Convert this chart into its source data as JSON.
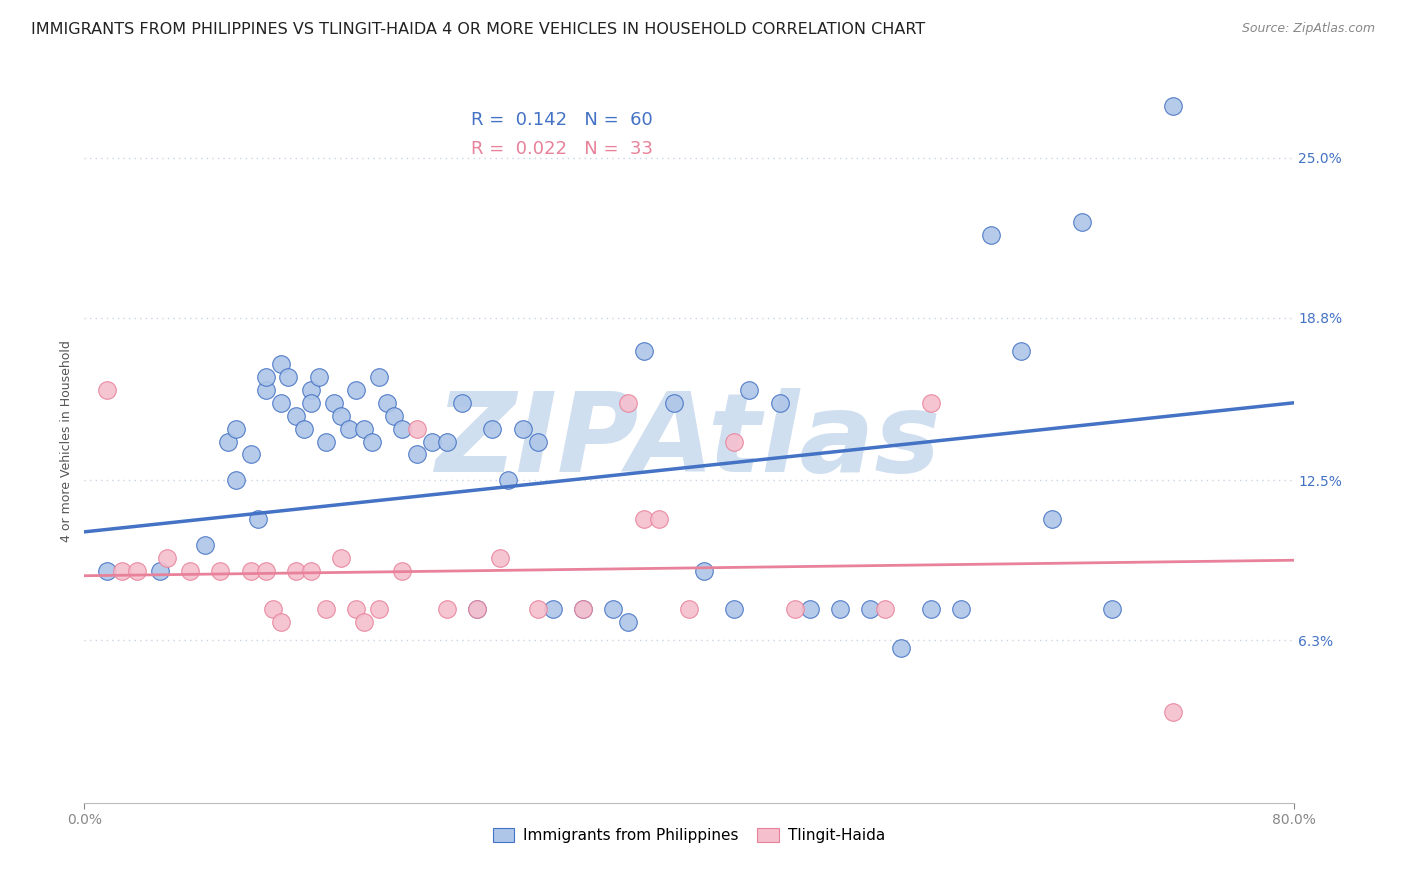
{
  "title": "IMMIGRANTS FROM PHILIPPINES VS TLINGIT-HAIDA 4 OR MORE VEHICLES IN HOUSEHOLD CORRELATION CHART",
  "source": "Source: ZipAtlas.com",
  "ylabel": "4 or more Vehicles in Household",
  "xlim": [
    0.0,
    80.0
  ],
  "ylim": [
    0.0,
    28.0
  ],
  "yticks": [
    6.3,
    12.5,
    18.8,
    25.0
  ],
  "ytick_labels": [
    "6.3%",
    "12.5%",
    "18.8%",
    "25.0%"
  ],
  "blue_label": "Immigrants from Philippines",
  "pink_label": "Tlingit-Haida",
  "blue_R": "0.142",
  "blue_N": "60",
  "pink_R": "0.022",
  "pink_N": "33",
  "blue_color": "#aec6e8",
  "pink_color": "#f5bfce",
  "blue_edge_color": "#4472c4",
  "pink_edge_color": "#e8829a",
  "blue_line_color": "#4472c4",
  "pink_line_color": "#e8829a",
  "watermark": "ZIPAtlas",
  "watermark_color": "#d0dff0",
  "blue_scatter_x": [
    1.5,
    5.0,
    8.0,
    9.5,
    10.0,
    10.0,
    11.0,
    11.5,
    12.0,
    12.0,
    13.0,
    13.0,
    13.5,
    14.0,
    14.5,
    15.0,
    15.0,
    15.5,
    16.0,
    16.5,
    17.0,
    17.5,
    18.0,
    18.5,
    19.0,
    19.5,
    20.0,
    20.5,
    21.0,
    22.0,
    23.0,
    24.0,
    25.0,
    26.0,
    27.0,
    28.0,
    29.0,
    30.0,
    31.0,
    33.0,
    35.0,
    36.0,
    37.0,
    39.0,
    41.0,
    43.0,
    44.0,
    46.0,
    48.0,
    50.0,
    52.0,
    54.0,
    56.0,
    58.0,
    60.0,
    62.0,
    64.0,
    66.0,
    68.0,
    72.0
  ],
  "blue_scatter_y": [
    9.0,
    9.0,
    10.0,
    14.0,
    12.5,
    14.5,
    13.5,
    11.0,
    16.0,
    16.5,
    15.5,
    17.0,
    16.5,
    15.0,
    14.5,
    16.0,
    15.5,
    16.5,
    14.0,
    15.5,
    15.0,
    14.5,
    16.0,
    14.5,
    14.0,
    16.5,
    15.5,
    15.0,
    14.5,
    13.5,
    14.0,
    14.0,
    15.5,
    7.5,
    14.5,
    12.5,
    14.5,
    14.0,
    7.5,
    7.5,
    7.5,
    7.0,
    17.5,
    15.5,
    9.0,
    7.5,
    16.0,
    15.5,
    7.5,
    7.5,
    7.5,
    6.0,
    7.5,
    7.5,
    22.0,
    17.5,
    11.0,
    22.5,
    7.5,
    27.0
  ],
  "pink_scatter_x": [
    1.5,
    2.5,
    3.5,
    5.5,
    7.0,
    9.0,
    11.0,
    12.0,
    12.5,
    13.0,
    14.0,
    15.0,
    16.0,
    17.0,
    18.0,
    18.5,
    19.5,
    21.0,
    22.0,
    24.0,
    26.0,
    27.5,
    30.0,
    33.0,
    36.0,
    37.0,
    38.0,
    40.0,
    43.0,
    47.0,
    53.0,
    56.0,
    72.0
  ],
  "pink_scatter_y": [
    16.0,
    9.0,
    9.0,
    9.5,
    9.0,
    9.0,
    9.0,
    9.0,
    7.5,
    7.0,
    9.0,
    9.0,
    7.5,
    9.5,
    7.5,
    7.0,
    7.5,
    9.0,
    14.5,
    7.5,
    7.5,
    9.5,
    7.5,
    7.5,
    15.5,
    11.0,
    11.0,
    7.5,
    14.0,
    7.5,
    7.5,
    15.5,
    3.5
  ],
  "blue_trend_x": [
    0.0,
    80.0
  ],
  "blue_trend_y": [
    10.5,
    15.5
  ],
  "pink_trend_x": [
    0.0,
    80.0
  ],
  "pink_trend_y": [
    8.8,
    9.4
  ],
  "hgrid_color": "#c8d4e4",
  "hgrid_style": "dotted",
  "title_fontsize": 11.5,
  "source_fontsize": 9,
  "axis_label_fontsize": 9,
  "tick_fontsize": 10,
  "legend_fontsize": 13
}
